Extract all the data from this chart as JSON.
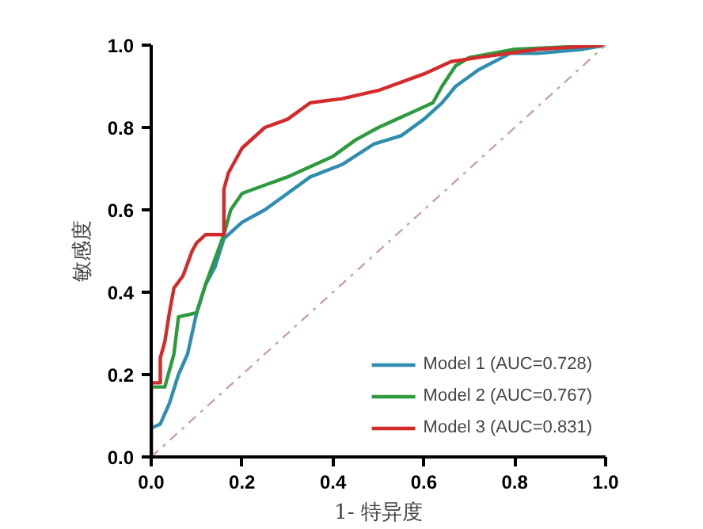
{
  "chart_data": {
    "type": "line",
    "xlabel": "1- 特异度",
    "ylabel": "敏感度",
    "xlim": [
      0,
      1
    ],
    "ylim": [
      0,
      1
    ],
    "xticks": [
      {
        "value": 0,
        "label": "0.0"
      },
      {
        "value": 0.2,
        "label": "0.2"
      },
      {
        "value": 0.4,
        "label": "0.4"
      },
      {
        "value": 0.6,
        "label": "0.6"
      },
      {
        "value": 0.8,
        "label": "0.8"
      },
      {
        "value": 1,
        "label": "1.0"
      }
    ],
    "yticks": [
      {
        "value": 0,
        "label": "0.0"
      },
      {
        "value": 0.2,
        "label": "0.2"
      },
      {
        "value": 0.4,
        "label": "0.4"
      },
      {
        "value": 0.6,
        "label": "0.6"
      },
      {
        "value": 0.8,
        "label": "0.8"
      },
      {
        "value": 1,
        "label": "1.0"
      }
    ],
    "grid": false,
    "legend": "bottom right",
    "marker": "none",
    "series": [
      {
        "name": "Model 1 (AUC=0.728)",
        "color": "#2f8db0",
        "x": [
          0,
          0,
          0.02,
          0.04,
          0.06,
          0.08,
          0.1,
          0.12,
          0.14,
          0.16,
          0.2,
          0.25,
          0.3,
          0.35,
          0.42,
          0.49,
          0.55,
          0.6,
          0.64,
          0.67,
          0.72,
          0.79,
          0.85,
          0.95,
          1
        ],
        "values": [
          0,
          0.07,
          0.08,
          0.13,
          0.2,
          0.25,
          0.35,
          0.42,
          0.46,
          0.53,
          0.57,
          0.6,
          0.64,
          0.68,
          0.71,
          0.76,
          0.78,
          0.82,
          0.86,
          0.9,
          0.94,
          0.98,
          0.98,
          0.99,
          1
        ]
      },
      {
        "name": "Model 2 (AUC=0.767)",
        "color": "#2e9a3e",
        "x": [
          0,
          0,
          0.03,
          0.05,
          0.06,
          0.1,
          0.12,
          0.14,
          0.16,
          0.175,
          0.2,
          0.25,
          0.3,
          0.4,
          0.45,
          0.5,
          0.58,
          0.62,
          0.64,
          0.67,
          0.7,
          0.8,
          1
        ],
        "values": [
          0,
          0.17,
          0.17,
          0.25,
          0.34,
          0.35,
          0.42,
          0.48,
          0.54,
          0.6,
          0.64,
          0.66,
          0.68,
          0.73,
          0.77,
          0.8,
          0.84,
          0.86,
          0.9,
          0.95,
          0.97,
          0.99,
          1
        ]
      },
      {
        "name": "Model 3 (AUC=0.831)",
        "color": "#d42a2a",
        "x": [
          0,
          0,
          0.02,
          0.02,
          0.03,
          0.04,
          0.05,
          0.07,
          0.09,
          0.1,
          0.12,
          0.16,
          0.16,
          0.17,
          0.2,
          0.25,
          0.3,
          0.35,
          0.42,
          0.5,
          0.6,
          0.66,
          0.72,
          0.85,
          1
        ],
        "values": [
          0,
          0.18,
          0.18,
          0.24,
          0.28,
          0.35,
          0.41,
          0.44,
          0.5,
          0.52,
          0.54,
          0.54,
          0.65,
          0.69,
          0.75,
          0.8,
          0.82,
          0.86,
          0.87,
          0.89,
          0.93,
          0.96,
          0.97,
          0.99,
          1
        ]
      },
      {
        "color": "#c8a0a8",
        "line_style": "dotted",
        "x": [
          0,
          1
        ],
        "values": [
          0,
          1
        ]
      }
    ]
  }
}
